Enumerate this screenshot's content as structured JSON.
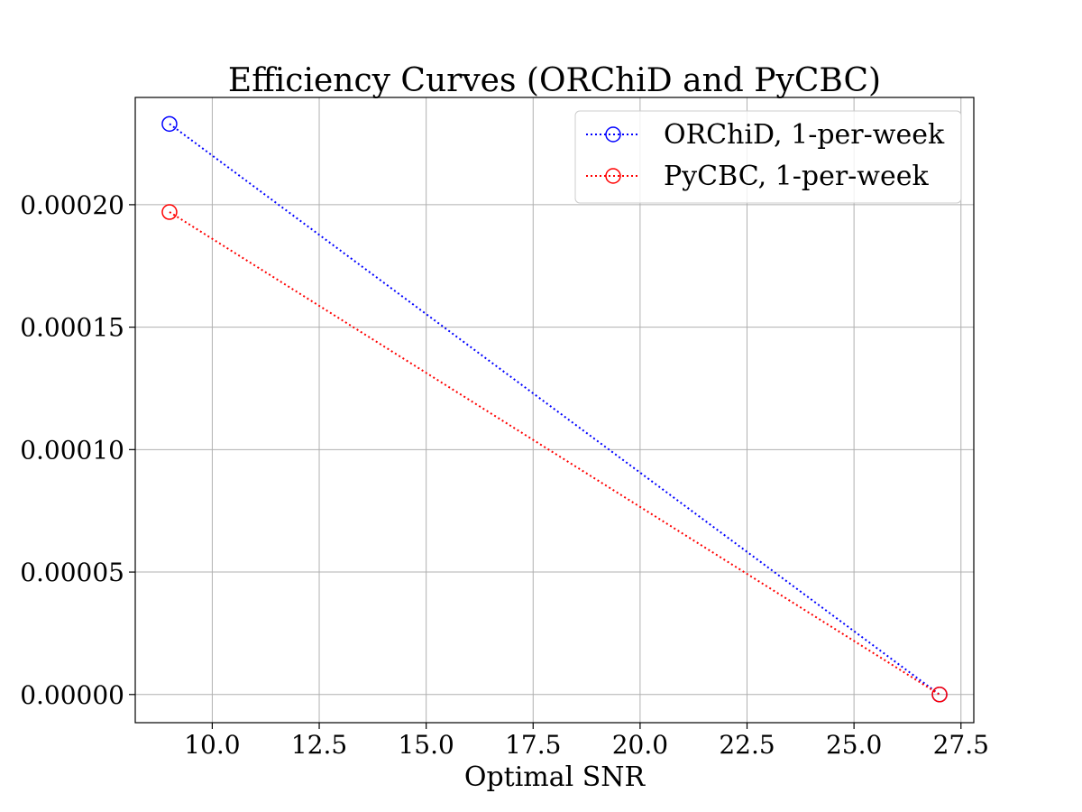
{
  "chart_data": {
    "type": "line",
    "title": "Efficiency Curves (ORChiD and PyCBC)",
    "xlabel": "Optimal SNR",
    "ylabel": "",
    "xlim": [
      8.2,
      27.8
    ],
    "ylim": [
      -1.15e-05,
      0.0002438
    ],
    "xticks": [
      10.0,
      12.5,
      15.0,
      17.5,
      20.0,
      22.5,
      25.0,
      27.5
    ],
    "xtick_labels": [
      "10.0",
      "12.5",
      "15.0",
      "17.5",
      "20.0",
      "22.5",
      "25.0",
      "27.5"
    ],
    "yticks": [
      0.0,
      5e-05,
      0.0001,
      0.00015,
      0.0002
    ],
    "ytick_labels": [
      "0.00000",
      "0.00005",
      "0.00010",
      "0.00015",
      "0.00020"
    ],
    "grid": true,
    "legend_position": "upper-right",
    "series": [
      {
        "name": "ORChiD, 1-per-week",
        "color": "#0000ff",
        "linestyle": "dotted",
        "marker": "open-circle",
        "x": [
          9.0,
          27.0
        ],
        "y": [
          0.000233,
          0.0
        ]
      },
      {
        "name": "PyCBC, 1-per-week",
        "color": "#ff0000",
        "linestyle": "dotted",
        "marker": "open-circle",
        "x": [
          9.0,
          27.0
        ],
        "y": [
          0.000197,
          0.0
        ]
      }
    ]
  }
}
